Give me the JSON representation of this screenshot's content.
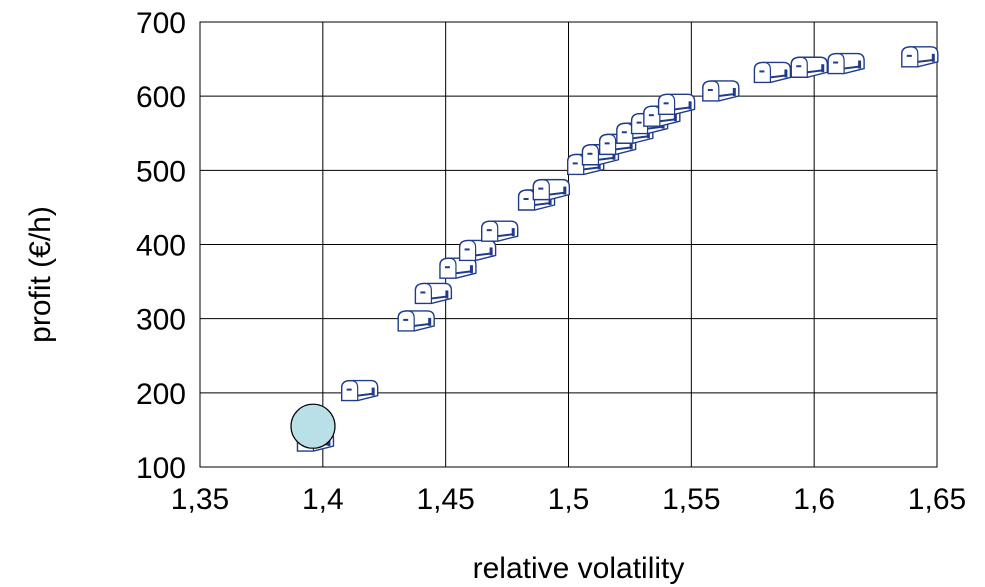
{
  "chart_data": {
    "type": "scatter",
    "xlabel": "relative volatility",
    "ylabel": "profit (€/h)",
    "xlim": [
      1.35,
      1.65
    ],
    "ylim": [
      100,
      700
    ],
    "x_ticks": [
      "1,35",
      "1,4",
      "1,45",
      "1,5",
      "1,55",
      "1,6",
      "1,65"
    ],
    "y_ticks": [
      "100",
      "200",
      "300",
      "400",
      "500",
      "600",
      "700"
    ],
    "grid": true,
    "series": [
      {
        "marker": "mailbox-icon",
        "color": "#1f3b8c",
        "points": [
          {
            "x": 1.397,
            "y": 135
          },
          {
            "x": 1.415,
            "y": 203
          },
          {
            "x": 1.438,
            "y": 297
          },
          {
            "x": 1.445,
            "y": 334
          },
          {
            "x": 1.455,
            "y": 368
          },
          {
            "x": 1.463,
            "y": 392
          },
          {
            "x": 1.472,
            "y": 418
          },
          {
            "x": 1.487,
            "y": 460
          },
          {
            "x": 1.493,
            "y": 474
          },
          {
            "x": 1.507,
            "y": 508
          },
          {
            "x": 1.513,
            "y": 521
          },
          {
            "x": 1.52,
            "y": 535
          },
          {
            "x": 1.527,
            "y": 550
          },
          {
            "x": 1.533,
            "y": 563
          },
          {
            "x": 1.538,
            "y": 573
          },
          {
            "x": 1.544,
            "y": 589
          },
          {
            "x": 1.562,
            "y": 607
          },
          {
            "x": 1.583,
            "y": 632
          },
          {
            "x": 1.598,
            "y": 639
          },
          {
            "x": 1.613,
            "y": 644
          },
          {
            "x": 1.643,
            "y": 653
          }
        ]
      },
      {
        "marker": "circle",
        "color": "#b8e0e6",
        "points": [
          {
            "x": 1.396,
            "y": 155
          }
        ]
      }
    ]
  }
}
